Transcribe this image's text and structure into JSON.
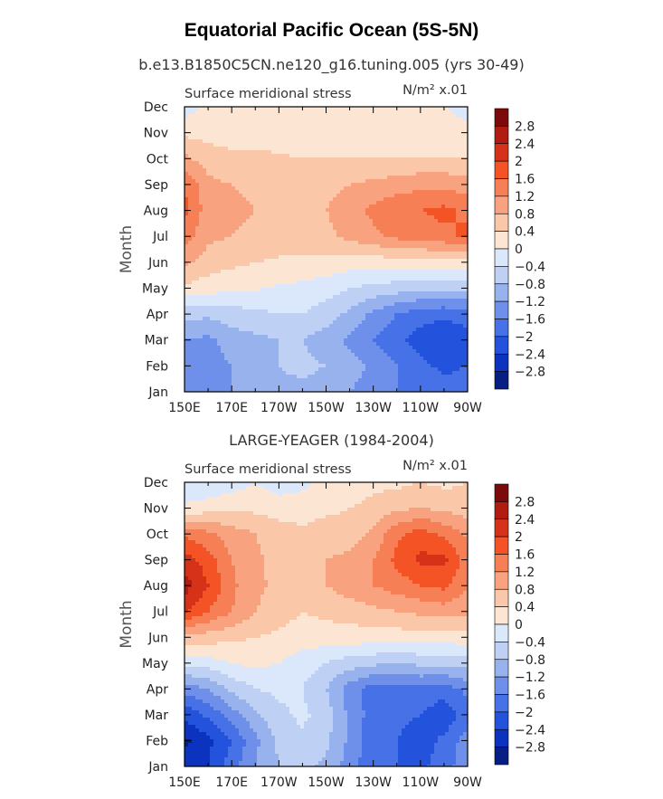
{
  "title": "Equatorial Pacific Ocean (5S-5N)",
  "subtitle": "b.e13.B1850C5CN.ne120_g16.tuning.005 (yrs 30-49)",
  "middle_title": "LARGE-YEAGER (1984-2004)",
  "chart_data": [
    {
      "type": "heatmap",
      "panel_label": "Surface meridional stress",
      "units": "N/m² x.01",
      "ylabel": "Month",
      "x_tick_labels": [
        "150E",
        "170E",
        "170W",
        "150W",
        "130W",
        "110W",
        "90W"
      ],
      "y_tick_labels": [
        "Jan",
        "Feb",
        "Mar",
        "Apr",
        "May",
        "Jun",
        "Jul",
        "Aug",
        "Sep",
        "Oct",
        "Nov",
        "Dec"
      ],
      "colorbar_labels": [
        "2.8",
        "2.4",
        "2",
        "1.6",
        "1.2",
        "0.8",
        "0.4",
        "0",
        "−0.4",
        "−0.8",
        "−1.2",
        "−1.6",
        "−2",
        "−2.4",
        "−2.8"
      ],
      "colorbar_colors": [
        "#7d0a0a",
        "#b01c10",
        "#d6321a",
        "#f45326",
        "#f67f56",
        "#f8a27f",
        "#fbc7a9",
        "#fde5d4",
        "#dbe8fb",
        "#bed0f4",
        "#98b2ee",
        "#6f90ea",
        "#4671e7",
        "#2353dd",
        "#0b33c0",
        "#071e85"
      ],
      "levels": [
        -2.8,
        -2.4,
        -2.0,
        -1.6,
        -1.2,
        -0.8,
        -0.4,
        0.0,
        0.4,
        0.8,
        1.2,
        1.6,
        2.0,
        2.4,
        2.8
      ],
      "grid": [
        [
          -1.3,
          -1.5,
          -1.2,
          -1.0,
          -0.9,
          -0.9,
          -1.0,
          -1.2,
          -1.4,
          -1.6,
          -1.7,
          -1.8,
          -1.8
        ],
        [
          -1.3,
          -1.4,
          -1.2,
          -1.0,
          -0.8,
          -0.7,
          -0.8,
          -1.0,
          -1.3,
          -1.6,
          -1.9,
          -2.1,
          -2.0
        ],
        [
          -1.2,
          -1.3,
          -1.0,
          -0.9,
          -0.8,
          -0.8,
          -1.0,
          -1.3,
          -1.6,
          -1.9,
          -2.2,
          -2.4,
          -2.2
        ],
        [
          -0.7,
          -0.7,
          -0.6,
          -0.5,
          -0.4,
          -0.4,
          -0.6,
          -0.9,
          -1.3,
          -1.6,
          -1.8,
          -1.9,
          -1.8
        ],
        [
          0.3,
          0.2,
          0.1,
          0.05,
          -0.05,
          -0.1,
          -0.2,
          -0.4,
          -0.5,
          -0.6,
          -0.7,
          -0.7,
          -0.7
        ],
        [
          0.9,
          0.6,
          0.5,
          0.4,
          0.35,
          0.3,
          0.25,
          0.2,
          0.2,
          0.2,
          0.2,
          0.25,
          0.3
        ],
        [
          1.4,
          0.9,
          0.8,
          0.7,
          0.6,
          0.6,
          0.7,
          0.9,
          1.1,
          1.3,
          1.4,
          1.5,
          1.7
        ],
        [
          1.7,
          1.0,
          0.9,
          0.8,
          0.7,
          0.7,
          0.8,
          1.0,
          1.3,
          1.5,
          1.6,
          1.7,
          1.5
        ],
        [
          1.6,
          0.9,
          0.8,
          0.7,
          0.6,
          0.6,
          0.7,
          0.8,
          0.9,
          1.0,
          1.1,
          1.1,
          1.0
        ],
        [
          0.9,
          0.6,
          0.5,
          0.5,
          0.45,
          0.4,
          0.4,
          0.4,
          0.4,
          0.4,
          0.4,
          0.4,
          0.4
        ],
        [
          0.3,
          0.25,
          0.2,
          0.2,
          0.2,
          0.2,
          0.2,
          0.2,
          0.2,
          0.2,
          0.2,
          0.2,
          0.15
        ],
        [
          -0.2,
          0.1,
          0.1,
          0.1,
          0.1,
          0.1,
          0.1,
          0.1,
          0.1,
          0.1,
          0.1,
          0.05,
          -0.2
        ]
      ]
    },
    {
      "type": "heatmap",
      "panel_label": "Surface meridional stress",
      "units": "N/m² x.01",
      "ylabel": "Month",
      "x_tick_labels": [
        "150E",
        "170E",
        "170W",
        "150W",
        "130W",
        "110W",
        "90W"
      ],
      "y_tick_labels": [
        "Jan",
        "Feb",
        "Mar",
        "Apr",
        "May",
        "Jun",
        "Jul",
        "Aug",
        "Sep",
        "Oct",
        "Nov",
        "Dec"
      ],
      "colorbar_labels": [
        "2.8",
        "2.4",
        "2",
        "1.6",
        "1.2",
        "0.8",
        "0.4",
        "0",
        "−0.4",
        "−0.8",
        "−1.2",
        "−1.6",
        "−2",
        "−2.4",
        "−2.8"
      ],
      "colorbar_colors": [
        "#7d0a0a",
        "#b01c10",
        "#d6321a",
        "#f45326",
        "#f67f56",
        "#f8a27f",
        "#fbc7a9",
        "#fde5d4",
        "#dbe8fb",
        "#bed0f4",
        "#98b2ee",
        "#6f90ea",
        "#4671e7",
        "#2353dd",
        "#0b33c0",
        "#071e85"
      ],
      "levels": [
        -2.8,
        -2.4,
        -2.0,
        -1.6,
        -1.2,
        -0.8,
        -0.4,
        0.0,
        0.4,
        0.8,
        1.2,
        1.6,
        2.0,
        2.4,
        2.8
      ],
      "grid": [
        [
          -2.6,
          -2.4,
          -1.8,
          -1.2,
          -0.8,
          -0.7,
          -0.9,
          -1.4,
          -1.9,
          -2.0,
          -2.1,
          -1.8,
          -1.3
        ],
        [
          -2.9,
          -2.5,
          -2.0,
          -1.3,
          -0.7,
          -0.5,
          -0.7,
          -1.3,
          -1.9,
          -2.0,
          -2.2,
          -1.9,
          -1.4
        ],
        [
          -2.3,
          -1.9,
          -1.4,
          -0.9,
          -0.5,
          -0.3,
          -0.6,
          -1.3,
          -1.8,
          -1.9,
          -2.0,
          -2.3,
          -1.8
        ],
        [
          -1.4,
          -1.2,
          -0.7,
          -0.4,
          -0.3,
          -0.4,
          -0.8,
          -1.4,
          -1.8,
          -1.8,
          -1.7,
          -1.8,
          -1.5
        ],
        [
          -0.3,
          -0.2,
          0.0,
          0.1,
          0.0,
          -0.2,
          -0.4,
          -0.6,
          -0.7,
          -0.8,
          -0.7,
          -0.7,
          -0.6
        ],
        [
          0.7,
          0.6,
          0.5,
          0.4,
          0.3,
          0.2,
          0.2,
          0.2,
          0.2,
          0.2,
          0.2,
          0.2,
          0.2
        ],
        [
          2.1,
          1.6,
          1.2,
          0.8,
          0.6,
          0.4,
          0.5,
          0.6,
          0.7,
          0.8,
          0.9,
          1.0,
          0.9
        ],
        [
          2.6,
          2.0,
          1.3,
          0.9,
          0.7,
          0.6,
          0.8,
          1.0,
          1.2,
          1.4,
          1.6,
          1.7,
          1.2
        ],
        [
          2.2,
          1.8,
          1.2,
          0.9,
          0.6,
          0.5,
          0.8,
          0.9,
          1.2,
          1.7,
          2.1,
          2.1,
          1.4
        ],
        [
          1.5,
          1.3,
          1.0,
          0.8,
          0.6,
          0.5,
          0.6,
          0.6,
          0.9,
          1.5,
          1.8,
          1.5,
          1.1
        ],
        [
          0.1,
          0.2,
          0.3,
          0.3,
          0.2,
          0.2,
          0.3,
          0.4,
          0.5,
          0.7,
          0.8,
          0.7,
          0.6
        ],
        [
          -0.4,
          -0.3,
          -0.2,
          0.0,
          -0.2,
          -0.1,
          0.1,
          0.2,
          0.3,
          0.3,
          0.4,
          0.3,
          0.4
        ]
      ]
    }
  ]
}
